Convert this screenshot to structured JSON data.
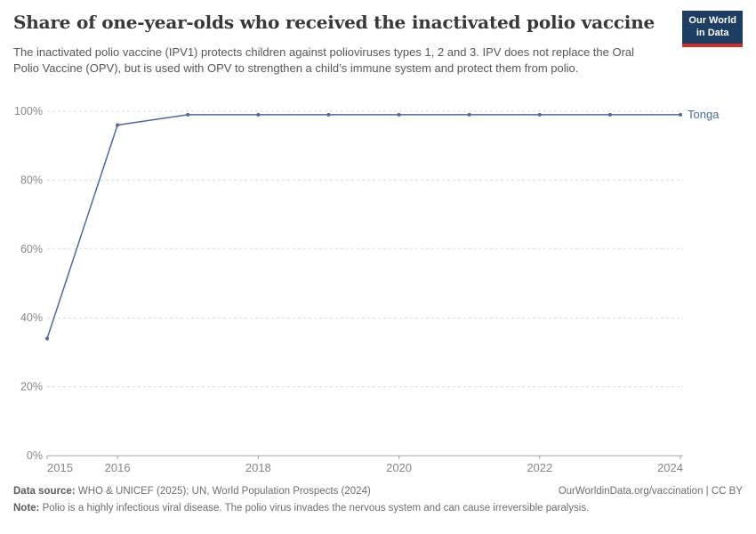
{
  "header": {
    "title": "Share of one-year-olds who received the inactivated polio vaccine",
    "subtitle": "The inactivated polio vaccine (IPV1) protects children against polioviruses types 1, 2 and 3. IPV does not replace the Oral Polio Vaccine (OPV), but is used with OPV to strengthen a child’s immune system and protect them from polio.",
    "logo": {
      "line1": "Our World",
      "line2": "in Data",
      "bg_color": "#1d3d63",
      "accent_color": "#cb302d"
    }
  },
  "chart_data": {
    "type": "line",
    "title": "Share of one-year-olds who received the inactivated polio vaccine",
    "x": [
      2015,
      2016,
      2017,
      2018,
      2019,
      2020,
      2021,
      2022,
      2023,
      2024
    ],
    "series": [
      {
        "name": "Tonga",
        "color": "#4c6a9c",
        "values": [
          34,
          96,
          99,
          99,
          99,
          99,
          99,
          99,
          99,
          99
        ]
      }
    ],
    "xlabel": "",
    "ylabel": "",
    "ylim": [
      0,
      100
    ],
    "xlim": [
      2015,
      2024
    ],
    "yticks": [
      {
        "value": 0,
        "label": "0%"
      },
      {
        "value": 20,
        "label": "20%"
      },
      {
        "value": 40,
        "label": "40%"
      },
      {
        "value": 60,
        "label": "60%"
      },
      {
        "value": 80,
        "label": "80%"
      },
      {
        "value": 100,
        "label": "100%"
      }
    ],
    "xticks": [
      {
        "value": 2015,
        "label": "2015"
      },
      {
        "value": 2016,
        "label": "2016"
      },
      {
        "value": 2018,
        "label": "2018"
      },
      {
        "value": 2020,
        "label": "2020"
      },
      {
        "value": 2022,
        "label": "2022"
      },
      {
        "value": 2024,
        "label": "2024"
      }
    ],
    "grid": "horizontal-dashed",
    "legend_position": "line-end-label",
    "colors": {
      "grid": "#d9d9d9",
      "axis": "#a3a3a3",
      "tick_label": "#878787"
    }
  },
  "footer": {
    "datasource_label": "Data source:",
    "datasource_text": " WHO & UNICEF (2025); UN, World Population Prospects (2024)",
    "attribution": "OurWorldinData.org/vaccination | CC BY",
    "note_label": "Note:",
    "note_text": " Polio is a highly infectious viral disease. The polio virus invades the nervous system and can cause irreversible paralysis."
  }
}
